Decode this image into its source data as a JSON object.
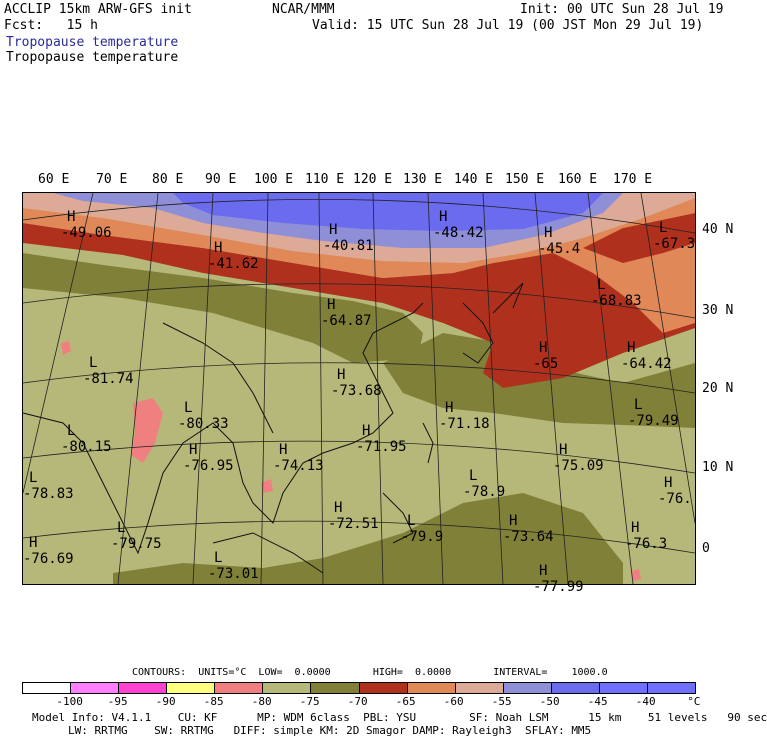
{
  "header": {
    "model_line": "ACCLIP 15km ARW-GFS init",
    "org": "NCAR/MMM",
    "init": "Init: 00 UTC Sun 28 Jul 19",
    "fcst": "Fcst:   15 h",
    "valid": "Valid: 15 UTC Sun 28 Jul 19 (00 JST Mon 29 Jul 19)",
    "field_title_1": "Tropopause temperature",
    "field_title_2": "Tropopause temperature"
  },
  "map": {
    "lon_labels": [
      "60 E",
      "70 E",
      "80 E",
      "90 E",
      "100 E",
      "110 E",
      "120 E",
      "130 E",
      "140 E",
      "150 E",
      "160 E",
      "170 E"
    ],
    "lat_labels": [
      "40 N",
      "30 N",
      "20 N",
      "10 N",
      "0"
    ],
    "colors": {
      "band_m50": "#8f8fd8",
      "band_m55": "#deaa98",
      "band_m60": "#e08858",
      "band_m65": "#b0301e",
      "band_m70": "#808038",
      "band_m75": "#b5b878",
      "band_m80": "#f08080",
      "band_m45": "#6b6bf0"
    },
    "markers": [
      {
        "letter": "H",
        "value": "-49.06"
      },
      {
        "letter": "H",
        "value": "-41.62"
      },
      {
        "letter": "H",
        "value": "-40.81"
      },
      {
        "letter": "H",
        "value": "-48.42"
      },
      {
        "letter": "H",
        "value": "-45.4"
      },
      {
        "letter": "L",
        "value": "-67.3"
      },
      {
        "letter": "L",
        "value": "-68.83"
      },
      {
        "letter": "H",
        "value": "-64.87"
      },
      {
        "letter": "H",
        "value": "-65"
      },
      {
        "letter": "H",
        "value": "-64.42"
      },
      {
        "letter": "L",
        "value": "-81.74"
      },
      {
        "letter": "H",
        "value": "-73.68"
      },
      {
        "letter": "L",
        "value": "-80.33"
      },
      {
        "letter": "H",
        "value": "-71.18"
      },
      {
        "letter": "L",
        "value": "-79.49"
      },
      {
        "letter": "L",
        "value": "-80.15"
      },
      {
        "letter": "H",
        "value": "-71.95"
      },
      {
        "letter": "H",
        "value": "-76.95"
      },
      {
        "letter": "H",
        "value": "-74.13"
      },
      {
        "letter": "H",
        "value": "-75.09"
      },
      {
        "letter": "L",
        "value": "-78.9"
      },
      {
        "letter": "H",
        "value": "-76."
      },
      {
        "letter": "L",
        "value": "-78.83"
      },
      {
        "letter": "L",
        "value": "-79.75"
      },
      {
        "letter": "H",
        "value": "-72.51"
      },
      {
        "letter": "L",
        "value": "-79.9"
      },
      {
        "letter": "H",
        "value": "-73.64"
      },
      {
        "letter": "H",
        "value": "-76.3"
      },
      {
        "letter": "H",
        "value": "-76.69"
      },
      {
        "letter": "L",
        "value": "-73.01"
      },
      {
        "letter": "H",
        "value": "-77.99"
      }
    ]
  },
  "legend": {
    "contours_line": "CONTOURS:  UNITS=°C  LOW=  0.0000       HIGH=  0.0000       INTERVAL=    1000.0",
    "ticks": [
      "-100",
      "-95",
      "-90",
      "-85",
      "-80",
      "-75",
      "-70",
      "-65",
      "-60",
      "-55",
      "-50",
      "-45",
      "-40",
      "°C"
    ],
    "swatches": [
      "#ffffff",
      "#ff80ff",
      "#ff40d0",
      "#ffff80",
      "#f08080",
      "#b5b878",
      "#808038",
      "#b0301e",
      "#e08858",
      "#deaa98",
      "#8f8fd8",
      "#6b6bf0",
      "#7070ff",
      "#7070ff"
    ]
  },
  "footer": {
    "line1": "Model Info: V4.1.1    CU: KF      MP: WDM 6class  PBL: YSU        SF: Noah LSM      15 km    51 levels   90 sec",
    "line2": "LW: RRTMG    SW: RRTMG   DIFF: simple KM: 2D Smagor DAMP: Rayleigh3  SFLAY: MM5"
  }
}
